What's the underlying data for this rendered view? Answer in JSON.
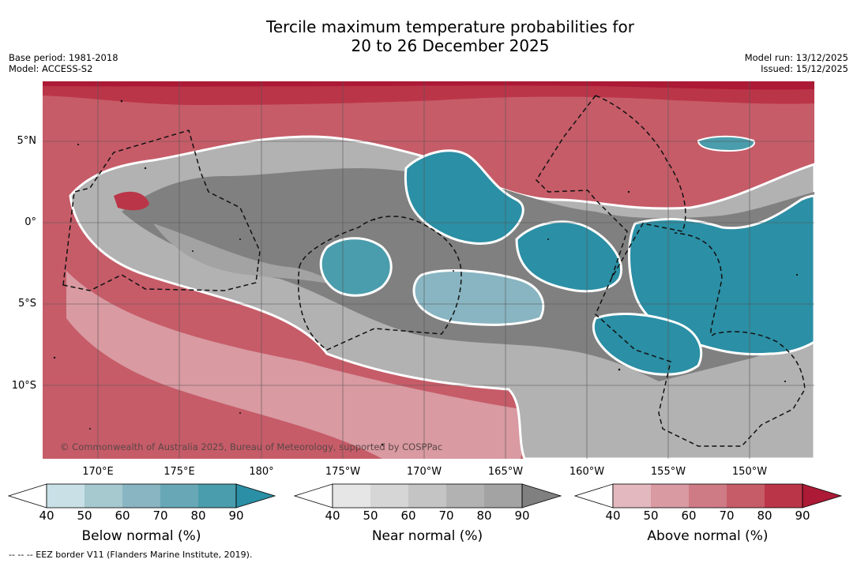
{
  "title": {
    "line1": "Tercile maximum temperature probabilities for",
    "line2": "20 to 26 December 2025"
  },
  "meta_left": {
    "base_period": "Base period: 1981-2018",
    "model": "Model: ACCESS-S2"
  },
  "meta_right": {
    "model_run": "Model run: 13/12/2025",
    "issued": "Issued: 15/12/2025"
  },
  "lat_labels": [
    "5°N",
    "0°",
    "5°S",
    "10°S"
  ],
  "lon_labels": [
    "170°E",
    "175°E",
    "180°",
    "175°W",
    "170°W",
    "165°W",
    "160°W",
    "155°W",
    "150°W"
  ],
  "copyright": "© Commonwealth of Australia 2025, Bureau of Meteorology, supported by COSPPac",
  "colorbars": [
    {
      "label": "Below normal (%)",
      "ticks": [
        "40",
        "50",
        "60",
        "70",
        "80",
        "90"
      ],
      "colors": [
        "#ffffff",
        "#c8e0e6",
        "#a6c8cf",
        "#88b5c1",
        "#68a8b6",
        "#4a9dac",
        "#2b8fa5"
      ]
    },
    {
      "label": "Near normal (%)",
      "ticks": [
        "40",
        "50",
        "60",
        "70",
        "80",
        "90"
      ],
      "colors": [
        "#ffffff",
        "#e6e6e6",
        "#d6d6d6",
        "#c4c4c4",
        "#b2b2b2",
        "#a3a3a3",
        "#808080"
      ]
    },
    {
      "label": "Above normal (%)",
      "ticks": [
        "40",
        "50",
        "60",
        "70",
        "80",
        "90"
      ],
      "colors": [
        "#ffffff",
        "#e3b8bf",
        "#d99aa2",
        "#cf7b85",
        "#c65c68",
        "#bb3548",
        "#ac1a36"
      ]
    }
  ],
  "footer": "--  --  -- EEZ border V11 (Flanders Marine Institute, 2019)."
}
